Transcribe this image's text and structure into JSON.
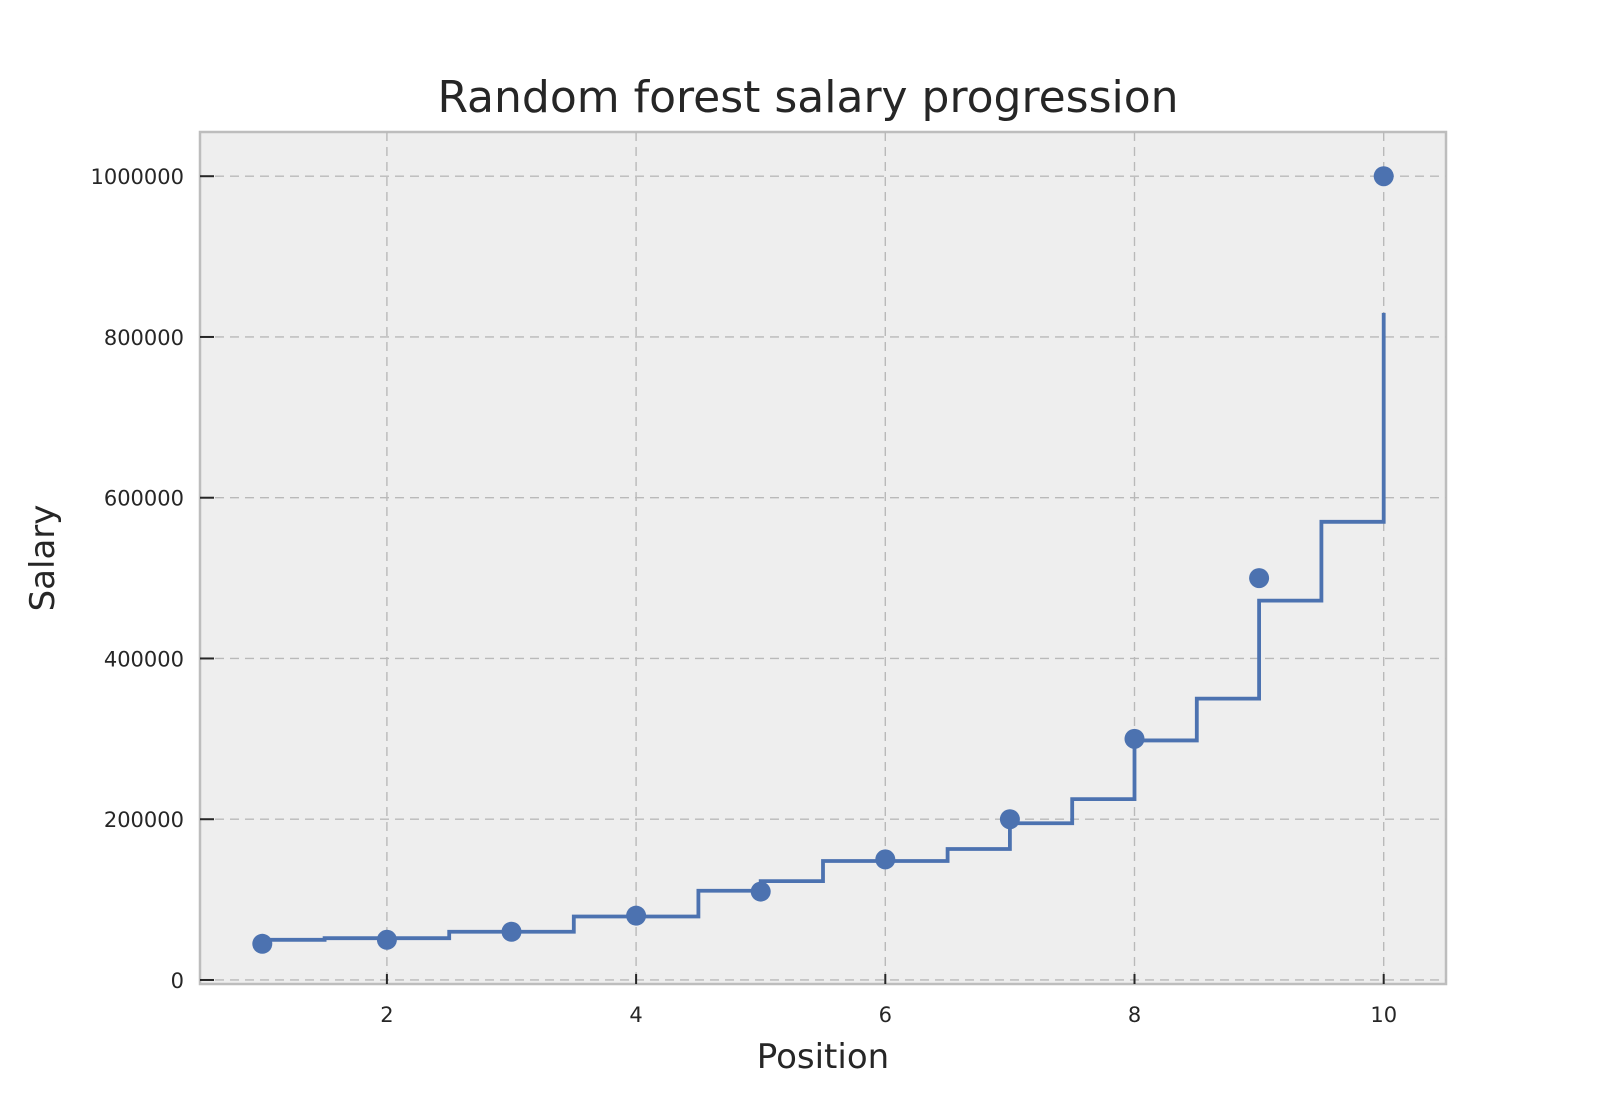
{
  "chart_data": {
    "type": "line",
    "title": "Random forest salary progression",
    "xlabel": "Position",
    "ylabel": "Salary",
    "xlim": [
      0.5,
      10.5
    ],
    "ylim": [
      -5000,
      1055000
    ],
    "xticks": [
      2,
      4,
      6,
      8,
      10
    ],
    "yticks": [
      0,
      200000,
      400000,
      600000,
      800000,
      1000000
    ],
    "grid": true,
    "colors": {
      "series": "#4c72b0",
      "plot_background": "#eeeeee",
      "frame": "#bdbdbd",
      "grid": "#b9b9b9"
    },
    "series": [
      {
        "kind": "scatter",
        "x": [
          1,
          2,
          3,
          4,
          5,
          6,
          7,
          8,
          9,
          10
        ],
        "y": [
          45000,
          50000,
          60000,
          80000,
          110000,
          150000,
          200000,
          300000,
          500000,
          1000000
        ]
      },
      {
        "kind": "step",
        "x": [
          1.0,
          1.5,
          2.5,
          3.5,
          4.5,
          5.0,
          5.5,
          6.5,
          7.0,
          7.5,
          8.0,
          8.5,
          9.0,
          9.5
        ],
        "x_end": 10.0,
        "y": [
          50000,
          52000,
          60000,
          79000,
          111000,
          123000,
          148000,
          163000,
          195000,
          225000,
          298000,
          350000,
          472000,
          570000
        ],
        "y_last": 830000
      }
    ]
  }
}
